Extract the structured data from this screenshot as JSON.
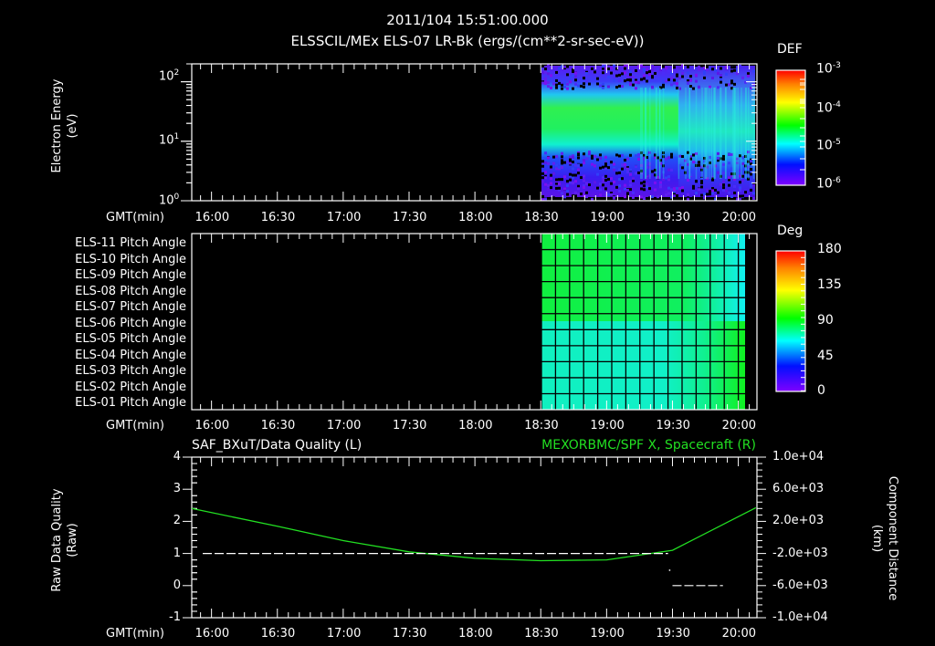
{
  "header": {
    "timestamp": "2011/104 15:51:00.000",
    "subtitle": "ELSSCIL/MEx ELS-07 LR-Bk  (ergs/(cm**2-sr-sec-eV))"
  },
  "time_axis": {
    "label": "GMT(min)",
    "ticks": [
      "16:00",
      "16:30",
      "17:00",
      "17:30",
      "18:00",
      "18:30",
      "19:00",
      "19:30",
      "20:00"
    ],
    "start": "15:51",
    "end": "20:08"
  },
  "panel1": {
    "ylabel_line1": "Electron Energy",
    "ylabel_line2": "(eV)",
    "yticks": [
      {
        "base": "10",
        "exp": "2"
      },
      {
        "base": "10",
        "exp": "1"
      },
      {
        "base": "10",
        "exp": "0"
      }
    ],
    "colorbar": {
      "title": "DEF",
      "ticks": [
        {
          "base": "10",
          "exp": "-3"
        },
        {
          "base": "10",
          "exp": "-4"
        },
        {
          "base": "10",
          "exp": "-5"
        },
        {
          "base": "10",
          "exp": "-6"
        }
      ]
    }
  },
  "panel2": {
    "rows": [
      "ELS-11 Pitch Angle",
      "ELS-10 Pitch Angle",
      "ELS-09 Pitch Angle",
      "ELS-08 Pitch Angle",
      "ELS-07 Pitch Angle",
      "ELS-06 Pitch Angle",
      "ELS-05 Pitch Angle",
      "ELS-04 Pitch Angle",
      "ELS-03 Pitch Angle",
      "ELS-02 Pitch Angle",
      "ELS-01 Pitch Angle"
    ],
    "colorbar": {
      "title": "Deg",
      "ticks": [
        "180",
        "135",
        "90",
        "45",
        "0"
      ]
    }
  },
  "panel3": {
    "left_title": "SAF_BXuT/Data Quality (L)",
    "right_title": "MEXORBMC/SPF X, Spacecraft (R)",
    "ylabel_left_line1": "Raw Data Quality",
    "ylabel_left_line2": "(Raw)",
    "ylabel_right_line1": "Component Distance",
    "ylabel_right_line2": "(km)",
    "left_ticks": [
      "4",
      "3",
      "2",
      "1",
      "0",
      "-1"
    ],
    "right_ticks": [
      "1.0e+04",
      "6.0e+03",
      "2.0e+03",
      "-2.0e+03",
      "-6.0e+03",
      "-1.0e+04"
    ]
  },
  "colors": {
    "background": "#000000",
    "axis": "#ffffff",
    "series_green": "#22e022"
  },
  "chart_data": [
    {
      "type": "heatmap",
      "title": "ELSSCIL/MEx ELS-07 LR-Bk (ergs/(cm**2-sr-sec-eV))",
      "xlabel": "GMT(min)",
      "ylabel": "Electron Energy (eV)",
      "yscale": "log",
      "ylim": [
        1,
        200
      ],
      "x_range": [
        "15:51",
        "20:08"
      ],
      "data_start": "18:30",
      "colorbar_label": "DEF",
      "colorbar_range": [
        1e-06,
        0.001
      ],
      "description": "Data present from ~18:30 onward; peak DEF ~1e-4 (green) near 30-60 eV before ~19:30, broadening/weakening after 19:30 to ~20-40 eV"
    },
    {
      "type": "heatmap",
      "title": "Pitch Angle",
      "xlabel": "GMT(min)",
      "categories": [
        "ELS-11",
        "ELS-10",
        "ELS-09",
        "ELS-08",
        "ELS-07",
        "ELS-06",
        "ELS-05",
        "ELS-04",
        "ELS-03",
        "ELS-02",
        "ELS-01"
      ],
      "colorbar_label": "Deg",
      "colorbar_range": [
        0,
        180
      ],
      "data_start": "18:30",
      "data_end": "20:05",
      "description": "Upper anodes ~95-100 deg (green), lower anodes ~70-80 deg (cyan-green); near 20:00 upper rows shift cyan (~70) and lower rows green (~100)"
    },
    {
      "type": "line",
      "title": "SAF_BXuT/Data Quality (L) & MEXORBMC/SPF X, Spacecraft (R)",
      "xlabel": "GMT(min)",
      "ylabel": "Raw Data Quality (Raw)",
      "ylabel_right": "Component Distance (km)",
      "ylim": [
        -1,
        4
      ],
      "ylim_right": [
        -10000,
        10000
      ],
      "series": [
        {
          "name": "Data Quality (L)",
          "x": [
            "15:56",
            "19:28",
            "19:30",
            "20:00"
          ],
          "values": [
            1,
            1,
            0,
            0
          ],
          "color": "#ffffff"
        },
        {
          "name": "SPF X Spacecraft (R)",
          "x": [
            "15:51",
            "16:30",
            "17:00",
            "17:30",
            "18:00",
            "18:30",
            "19:00",
            "19:30",
            "20:08"
          ],
          "values": [
            3600,
            1400,
            -400,
            -1800,
            -2600,
            -2900,
            -2800,
            -1600,
            3700
          ],
          "color": "#22e022"
        }
      ]
    }
  ]
}
